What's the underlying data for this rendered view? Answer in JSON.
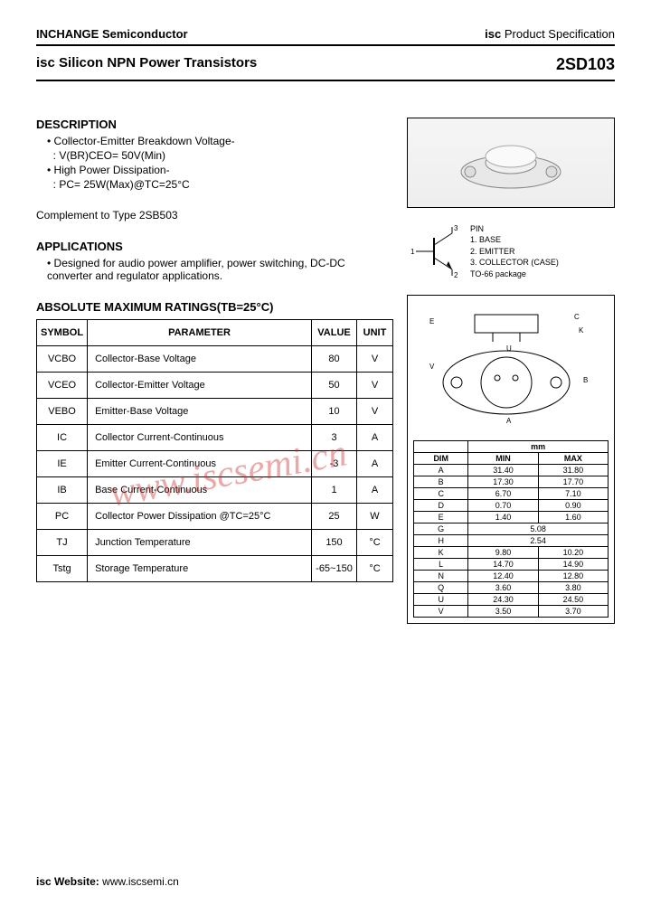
{
  "header": {
    "company": "INCHANGE Semiconductor",
    "spec_prefix": "isc",
    "spec_text": "Product Specification"
  },
  "title": {
    "left_prefix": "isc",
    "left_text": "Silicon NPN Power Transistors",
    "part_number": "2SD103"
  },
  "description": {
    "heading": "DESCRIPTION",
    "items": [
      "Collector-Emitter Breakdown Voltage-",
      ": V(BR)CEO= 50V(Min)",
      "High Power Dissipation-",
      ": PC= 25W(Max)@TC=25°C"
    ],
    "complement": "Complement to Type 2SB503"
  },
  "applications": {
    "heading": "APPLICATIONS",
    "text": "Designed for audio power amplifier, power switching, DC-DC converter and regulator applications."
  },
  "pin_labels": {
    "heading": "PIN",
    "p1": "1. BASE",
    "p2": "2. EMITTER",
    "p3": "3. COLLECTOR (CASE)",
    "pkg": "TO-66 package"
  },
  "ratings": {
    "heading": "ABSOLUTE MAXIMUM RATINGS(TB=25°C)",
    "columns": [
      "SYMBOL",
      "PARAMETER",
      "VALUE",
      "UNIT"
    ],
    "rows": [
      {
        "symbol": "VCBO",
        "parameter": "Collector-Base Voltage",
        "value": "80",
        "unit": "V"
      },
      {
        "symbol": "VCEO",
        "parameter": "Collector-Emitter Voltage",
        "value": "50",
        "unit": "V"
      },
      {
        "symbol": "VEBO",
        "parameter": "Emitter-Base Voltage",
        "value": "10",
        "unit": "V"
      },
      {
        "symbol": "IC",
        "parameter": "Collector Current-Continuous",
        "value": "3",
        "unit": "A"
      },
      {
        "symbol": "IE",
        "parameter": "Emitter Current-Continuous",
        "value": "-3",
        "unit": "A"
      },
      {
        "symbol": "IB",
        "parameter": "Base Current-Continuous",
        "value": "1",
        "unit": "A"
      },
      {
        "symbol": "PC",
        "parameter": "Collector Power Dissipation @TC=25°C",
        "value": "25",
        "unit": "W"
      },
      {
        "symbol": "TJ",
        "parameter": "Junction Temperature",
        "value": "150",
        "unit": "°C"
      },
      {
        "symbol": "Tstg",
        "parameter": "Storage Temperature",
        "value": "-65~150",
        "unit": "°C"
      }
    ]
  },
  "dimensions": {
    "unit_header": "mm",
    "columns": [
      "DIM",
      "MIN",
      "MAX"
    ],
    "rows": [
      {
        "dim": "A",
        "min": "31.40",
        "max": "31.80"
      },
      {
        "dim": "B",
        "min": "17.30",
        "max": "17.70"
      },
      {
        "dim": "C",
        "min": "6.70",
        "max": "7.10"
      },
      {
        "dim": "D",
        "min": "0.70",
        "max": "0.90"
      },
      {
        "dim": "E",
        "min": "1.40",
        "max": "1.60"
      },
      {
        "dim": "G",
        "min": "5.08",
        "max": ""
      },
      {
        "dim": "H",
        "min": "2.54",
        "max": ""
      },
      {
        "dim": "K",
        "min": "9.80",
        "max": "10.20"
      },
      {
        "dim": "L",
        "min": "14.70",
        "max": "14.90"
      },
      {
        "dim": "N",
        "min": "12.40",
        "max": "12.80"
      },
      {
        "dim": "Q",
        "min": "3.60",
        "max": "3.80"
      },
      {
        "dim": "U",
        "min": "24.30",
        "max": "24.50"
      },
      {
        "dim": "V",
        "min": "3.50",
        "max": "3.70"
      }
    ]
  },
  "watermark": "www.iscsemi.cn",
  "footer": {
    "label": "isc Website:",
    "url": "www.iscsemi.cn"
  }
}
